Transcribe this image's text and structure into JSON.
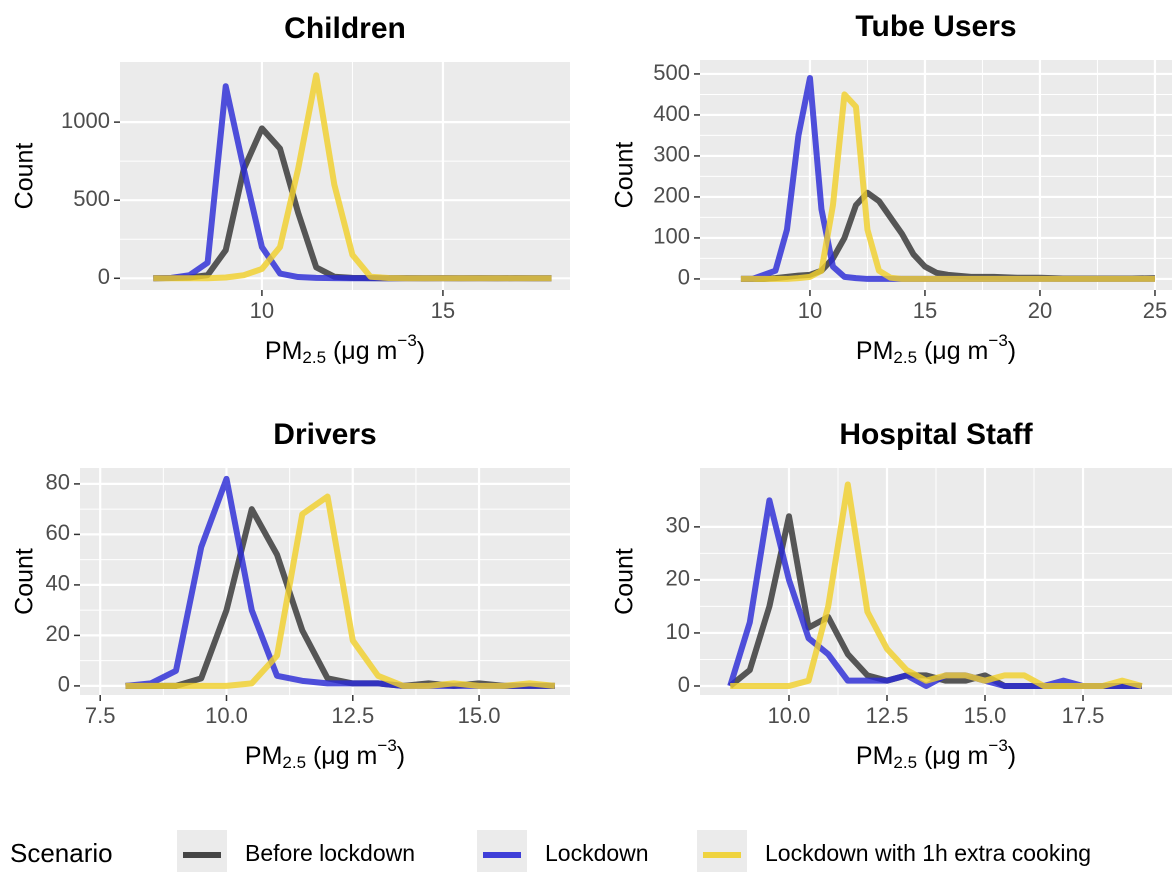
{
  "legend_title": "Scenario",
  "chart_data": [
    {
      "type": "line",
      "title": "Children",
      "y_label": "Count",
      "x_label": [
        "PM",
        "2.5",
        " (μg m",
        "−3",
        ")"
      ],
      "xlim": [
        6.08,
        18.51
      ],
      "xticks": [
        10,
        15
      ],
      "ylim": [
        -75,
        1385
      ],
      "yticks": [
        0,
        500,
        1000
      ],
      "grid": true,
      "x": [
        7,
        7.5,
        8,
        8.5,
        9,
        9.5,
        10,
        10.5,
        11,
        11.5,
        12,
        12.5,
        13,
        13.5,
        14,
        14.5,
        15,
        15.5,
        16,
        16.5,
        17,
        17.5,
        18
      ],
      "series": [
        {
          "name": "Before lockdown",
          "color": "#333333",
          "values": [
            0,
            2,
            5,
            20,
            180,
            700,
            960,
            830,
            420,
            70,
            10,
            3,
            1,
            0,
            1,
            0,
            1,
            0,
            1,
            0,
            1,
            0,
            0
          ]
        },
        {
          "name": "Lockdown",
          "color": "#2b2bd6",
          "values": [
            0,
            3,
            20,
            100,
            1230,
            700,
            200,
            30,
            8,
            3,
            1,
            0,
            0,
            0,
            0,
            0,
            0,
            0,
            0,
            0,
            0,
            0,
            0
          ]
        },
        {
          "name": "Lockdown with 1h extra cooking",
          "color": "#f0d02c",
          "values": [
            0,
            0,
            0,
            0,
            5,
            20,
            60,
            200,
            700,
            1300,
            600,
            150,
            10,
            2,
            0,
            0,
            0,
            0,
            0,
            0,
            0,
            0,
            0
          ]
        }
      ]
    },
    {
      "type": "line",
      "title": "Tube Users",
      "y_label": "Count",
      "x_label": [
        "PM",
        "2.5",
        " (μg m",
        "−3",
        ")"
      ],
      "xlim": [
        5.22,
        25.74
      ],
      "xticks": [
        10,
        15,
        20,
        25
      ],
      "ylim": [
        -27,
        534
      ],
      "yticks": [
        0,
        100,
        200,
        300,
        400,
        500
      ],
      "grid": true,
      "x": [
        7,
        7.5,
        8,
        8.5,
        9,
        9.5,
        10,
        10.5,
        11,
        11.5,
        12,
        12.5,
        13,
        13.5,
        14,
        14.5,
        15,
        15.5,
        16,
        17,
        18,
        19,
        20,
        21,
        22,
        23,
        24,
        25
      ],
      "series": [
        {
          "name": "Before lockdown",
          "color": "#333333",
          "values": [
            0,
            0,
            0,
            2,
            5,
            8,
            10,
            20,
            50,
            100,
            180,
            210,
            190,
            150,
            110,
            60,
            30,
            15,
            10,
            5,
            5,
            3,
            3,
            1,
            1,
            1,
            1,
            2
          ]
        },
        {
          "name": "Lockdown",
          "color": "#2b2bd6",
          "values": [
            0,
            0,
            10,
            20,
            120,
            350,
            490,
            170,
            30,
            5,
            2,
            0,
            0,
            0,
            0,
            0,
            0,
            0,
            0,
            0,
            0,
            0,
            0,
            0,
            0,
            0,
            0,
            0
          ]
        },
        {
          "name": "Lockdown with 1h extra cooking",
          "color": "#f0d02c",
          "values": [
            0,
            0,
            0,
            0,
            0,
            2,
            5,
            20,
            180,
            450,
            420,
            120,
            20,
            3,
            0,
            0,
            0,
            0,
            0,
            0,
            0,
            0,
            0,
            0,
            0,
            0,
            0,
            0
          ]
        }
      ]
    },
    {
      "type": "line",
      "title": "Drivers",
      "y_label": "Count",
      "x_label": [
        "PM",
        "2.5",
        " (μg m",
        "−3",
        ")"
      ],
      "xlim": [
        7.1,
        16.8
      ],
      "xticks": [
        7.5,
        {
          "value": 10,
          "label": "10.0"
        },
        {
          "value": 12.5,
          "label": "12.5"
        },
        {
          "value": 15,
          "label": "15.0"
        }
      ],
      "ylim": [
        -3.6,
        86.3
      ],
      "yticks": [
        0,
        20,
        40,
        60,
        80
      ],
      "grid": true,
      "x": [
        8,
        8.5,
        9,
        9.5,
        10,
        10.5,
        11,
        11.5,
        12,
        12.5,
        13,
        13.5,
        14,
        14.5,
        15,
        15.5,
        16,
        16.5
      ],
      "series": [
        {
          "name": "Before lockdown",
          "color": "#333333",
          "values": [
            0,
            0,
            0,
            3,
            30,
            70,
            52,
            22,
            3,
            1,
            1,
            0,
            1,
            0,
            1,
            0,
            0,
            0
          ]
        },
        {
          "name": "Lockdown",
          "color": "#2b2bd6",
          "values": [
            0,
            1,
            6,
            55,
            82,
            30,
            4,
            2,
            1,
            1,
            1,
            0,
            0,
            0,
            0,
            0,
            0,
            0
          ]
        },
        {
          "name": "Lockdown with 1h extra cooking",
          "color": "#f0d02c",
          "values": [
            0,
            0,
            0,
            0,
            0,
            1,
            12,
            68,
            75,
            18,
            4,
            0,
            0,
            1,
            0,
            0,
            1,
            0
          ]
        }
      ]
    },
    {
      "type": "line",
      "title": "Hospital Staff",
      "y_label": "Count",
      "x_label": [
        "PM",
        "2.5",
        " (μg m",
        "−3",
        ")"
      ],
      "xlim": [
        7.73,
        19.77
      ],
      "xticks": [
        {
          "value": 10,
          "label": "10.0"
        },
        12.5,
        {
          "value": 15,
          "label": "15.0"
        },
        17.5
      ],
      "ylim": [
        -1.7,
        41.1
      ],
      "yticks": [
        0,
        10,
        20,
        30
      ],
      "grid": true,
      "x": [
        8.5,
        9,
        9.5,
        10,
        10.5,
        11,
        11.5,
        12,
        12.5,
        13,
        13.5,
        14,
        14.5,
        15,
        15.5,
        16,
        16.5,
        17,
        17.5,
        18,
        18.5,
        19
      ],
      "series": [
        {
          "name": "Before lockdown",
          "color": "#333333",
          "values": [
            0,
            3,
            15,
            32,
            11,
            13,
            6,
            2,
            1,
            2,
            2,
            1,
            1,
            2,
            0,
            0,
            0,
            0,
            0,
            0,
            0,
            0
          ]
        },
        {
          "name": "Lockdown",
          "color": "#2b2bd6",
          "values": [
            0,
            12,
            35,
            20,
            9,
            6,
            1,
            1,
            1,
            2,
            0,
            2,
            2,
            1,
            0,
            0,
            0,
            1,
            0,
            0,
            0,
            0
          ]
        },
        {
          "name": "Lockdown with 1h extra cooking",
          "color": "#f0d02c",
          "values": [
            0,
            0,
            0,
            0,
            1,
            15,
            38,
            14,
            7,
            3,
            1,
            2,
            2,
            1,
            2,
            2,
            0,
            0,
            0,
            0,
            1,
            0
          ]
        }
      ]
    }
  ]
}
